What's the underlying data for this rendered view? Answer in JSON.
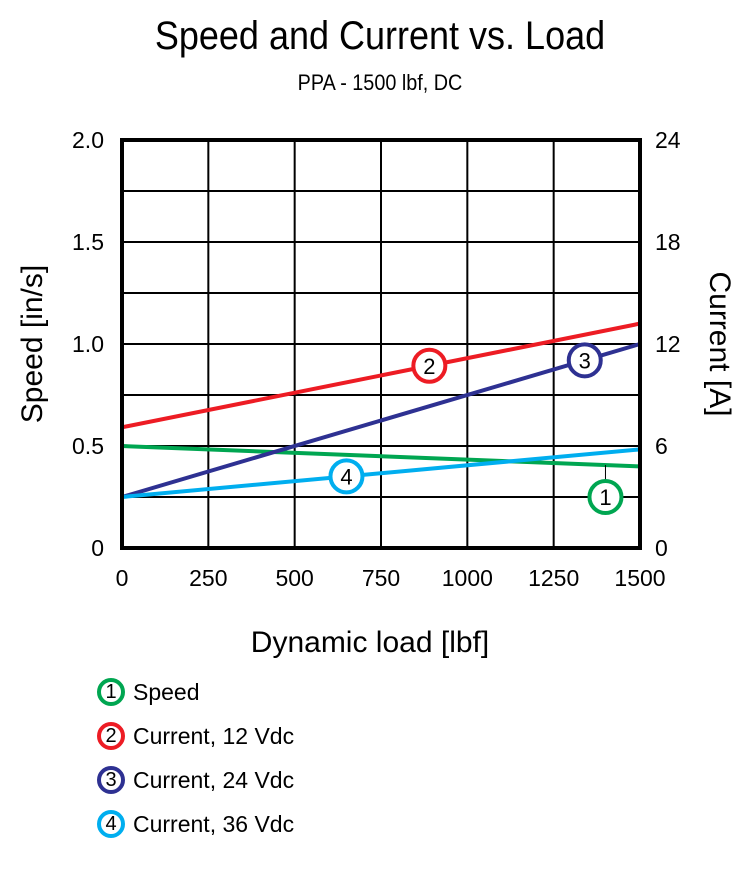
{
  "chart_data": {
    "type": "line",
    "title": "Speed and Current vs. Load",
    "subtitle": "PPA - 1500 lbf, DC",
    "xlabel": "Dynamic load [lbf]",
    "ylabel": "Speed [in/s]",
    "y2label": "Current [A]",
    "xlim": [
      0,
      1500
    ],
    "ylim": [
      0,
      2.0
    ],
    "y2lim": [
      0,
      24
    ],
    "xticks": [
      "0",
      "250",
      "500",
      "750",
      "1000",
      "1250",
      "1500"
    ],
    "yticks": [
      "0",
      "0.5",
      "1.0",
      "1.5",
      "2.0"
    ],
    "y2ticks": [
      "0",
      "6",
      "12",
      "18",
      "24"
    ],
    "grid": true,
    "legend_position": "bottom-left",
    "series": [
      {
        "id": "1",
        "name": "Speed",
        "axis": "left",
        "color": "#00a651",
        "x": [
          0,
          1500
        ],
        "y": [
          0.5,
          0.4
        ],
        "label_x": 1400,
        "label_y": 0.25
      },
      {
        "id": "2",
        "name": "Current, 12 Vdc",
        "axis": "right",
        "color": "#ed1c24",
        "x": [
          0,
          1500
        ],
        "y": [
          7.1,
          13.2
        ],
        "label_x": 890
      },
      {
        "id": "3",
        "name": "Current, 24 Vdc",
        "axis": "right",
        "color": "#2e3192",
        "x": [
          0,
          1500
        ],
        "y": [
          3.0,
          12.0
        ],
        "label_x": 1340
      },
      {
        "id": "4",
        "name": "Current, 36 Vdc",
        "axis": "right",
        "color": "#00aeef",
        "x": [
          0,
          1500
        ],
        "y": [
          3.0,
          5.8
        ],
        "label_x": 650
      }
    ]
  }
}
